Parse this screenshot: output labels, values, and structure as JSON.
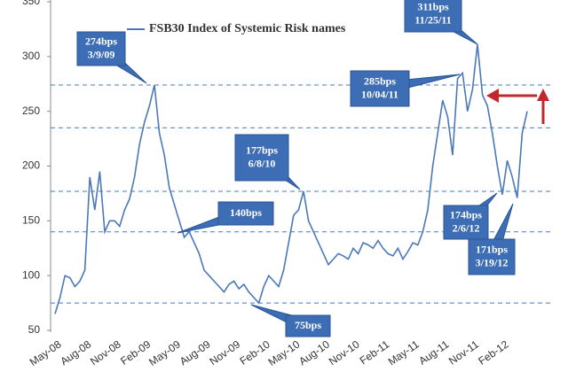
{
  "chart_data": {
    "type": "line",
    "categories": [
      "May-08",
      null,
      null,
      null,
      null,
      null,
      "Aug-08",
      null,
      null,
      null,
      null,
      null,
      "Nov-08",
      null,
      null,
      null,
      null,
      null,
      "Feb-09",
      null,
      null,
      null,
      null,
      null,
      "May-09",
      null,
      null,
      null,
      null,
      null,
      "Aug-09",
      null,
      null,
      null,
      null,
      null,
      "Nov-09",
      null,
      null,
      null,
      null,
      null,
      "Feb-10",
      null,
      null,
      null,
      null,
      null,
      "May-10",
      null,
      null,
      null,
      null,
      null,
      "Aug-10",
      null,
      null,
      null,
      null,
      null,
      "Nov-10",
      null,
      null,
      null,
      null,
      null,
      "Feb-11",
      null,
      null,
      null,
      null,
      null,
      "May-11",
      null,
      null,
      null,
      null,
      null,
      "Aug-11",
      null,
      null,
      null,
      null,
      null,
      "Nov-11",
      null,
      null,
      null,
      null,
      null,
      "Feb-12",
      null,
      null,
      null,
      null,
      null
    ],
    "series": [
      {
        "name": "FSB30 Index of Systemic Risk names",
        "color": "#4a78b8",
        "values": [
          65,
          80,
          100,
          98,
          90,
          95,
          105,
          190,
          160,
          195,
          140,
          150,
          150,
          145,
          160,
          170,
          190,
          220,
          240,
          255,
          274,
          230,
          210,
          180,
          165,
          150,
          135,
          140,
          130,
          120,
          105,
          100,
          95,
          90,
          85,
          92,
          95,
          88,
          92,
          85,
          80,
          75,
          90,
          100,
          95,
          90,
          105,
          130,
          155,
          160,
          177,
          150,
          140,
          130,
          120,
          110,
          115,
          120,
          118,
          115,
          125,
          120,
          130,
          128,
          125,
          132,
          125,
          120,
          118,
          125,
          115,
          122,
          130,
          128,
          140,
          160,
          200,
          230,
          260,
          245,
          210,
          280,
          285,
          250,
          270,
          311,
          265,
          255,
          230,
          200,
          174,
          205,
          190,
          171,
          230,
          250
        ]
      }
    ],
    "ylim": [
      50,
      350
    ],
    "yticks": [
      50,
      100,
      150,
      200,
      250,
      300,
      350
    ],
    "reference_lines": [
      274,
      235,
      177,
      140,
      75
    ],
    "annotations": [
      {
        "lines": [
          "274bps",
          "3/9/09"
        ]
      },
      {
        "lines": [
          "140bps"
        ]
      },
      {
        "lines": [
          "177bps",
          "6/8/10"
        ]
      },
      {
        "lines": [
          "75bps"
        ]
      },
      {
        "lines": [
          "285bps",
          "10/04/11"
        ]
      },
      {
        "lines": [
          "311bps",
          "11/25/11"
        ]
      },
      {
        "lines": [
          "174bps",
          "2/6/12"
        ]
      },
      {
        "lines": [
          "171bps",
          "3/19/12"
        ]
      }
    ]
  }
}
